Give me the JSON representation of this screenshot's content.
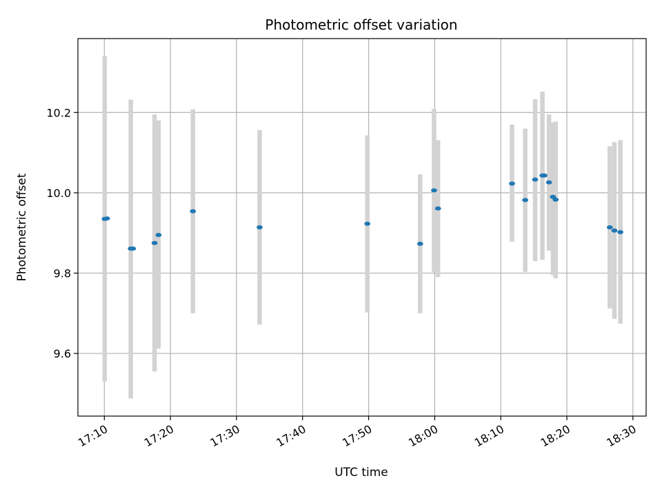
{
  "chart_data": {
    "type": "scatter",
    "title": "Photometric offset variation",
    "xlabel": "UTC time",
    "ylabel": "Photometric offset",
    "x_axis_type": "time",
    "xlim": [
      "17:06",
      "18:32"
    ],
    "ylim": [
      9.444,
      10.384
    ],
    "x_ticks": [
      "17:10",
      "17:20",
      "17:30",
      "17:40",
      "17:50",
      "18:00",
      "18:10",
      "18:20",
      "18:30"
    ],
    "y_ticks": [
      9.6,
      9.8,
      10.0,
      10.2
    ],
    "y_tick_labels": [
      "9.6",
      "9.8",
      "10.0",
      "10.2"
    ],
    "grid": true,
    "colors": {
      "point": "#1f77b4",
      "errorbar": "#d3d3d3",
      "grid": "#b0b0b0",
      "axes": "#000000"
    },
    "points": [
      {
        "t": "17:10:03",
        "y": 9.935,
        "low": 9.53,
        "high": 10.34
      },
      {
        "t": "17:10:24",
        "y": 9.936
      },
      {
        "t": "17:14:00",
        "y": 9.861,
        "low": 9.488,
        "high": 10.232
      },
      {
        "t": "17:14:20",
        "y": 9.861
      },
      {
        "t": "17:17:36",
        "y": 9.875,
        "low": 9.555,
        "high": 10.195
      },
      {
        "t": "17:18:12",
        "y": 9.895,
        "low": 9.612,
        "high": 10.18
      },
      {
        "t": "17:23:24",
        "y": 9.954,
        "low": 9.7,
        "high": 10.208
      },
      {
        "t": "17:33:30",
        "y": 9.914,
        "low": 9.672,
        "high": 10.156
      },
      {
        "t": "17:49:48",
        "y": 9.923,
        "low": 9.702,
        "high": 10.143
      },
      {
        "t": "17:57:48",
        "y": 9.873,
        "low": 9.7,
        "high": 10.046
      },
      {
        "t": "17:59:54",
        "y": 10.006,
        "low": 9.803,
        "high": 10.209
      },
      {
        "t": "18:00:30",
        "y": 9.961,
        "low": 9.79,
        "high": 10.131
      },
      {
        "t": "18:11:42",
        "y": 10.023,
        "low": 9.878,
        "high": 10.17
      },
      {
        "t": "18:13:42",
        "y": 9.982,
        "low": 9.803,
        "high": 10.16
      },
      {
        "t": "18:15:12",
        "y": 10.033,
        "low": 9.83,
        "high": 10.233
      },
      {
        "t": "18:16:18",
        "y": 10.043,
        "low": 9.833,
        "high": 10.252
      },
      {
        "t": "18:16:36",
        "y": 10.043
      },
      {
        "t": "18:17:18",
        "y": 10.026,
        "low": 9.856,
        "high": 10.195
      },
      {
        "t": "18:17:54",
        "y": 9.99,
        "low": 9.795,
        "high": 10.175
      },
      {
        "t": "18:18:18",
        "y": 9.983,
        "low": 9.787,
        "high": 10.177
      },
      {
        "t": "18:26:30",
        "y": 9.914,
        "low": 9.712,
        "high": 10.116
      },
      {
        "t": "18:27:12",
        "y": 9.906,
        "low": 9.686,
        "high": 10.126
      },
      {
        "t": "18:28:06",
        "y": 9.902,
        "low": 9.674,
        "high": 10.131
      }
    ]
  }
}
